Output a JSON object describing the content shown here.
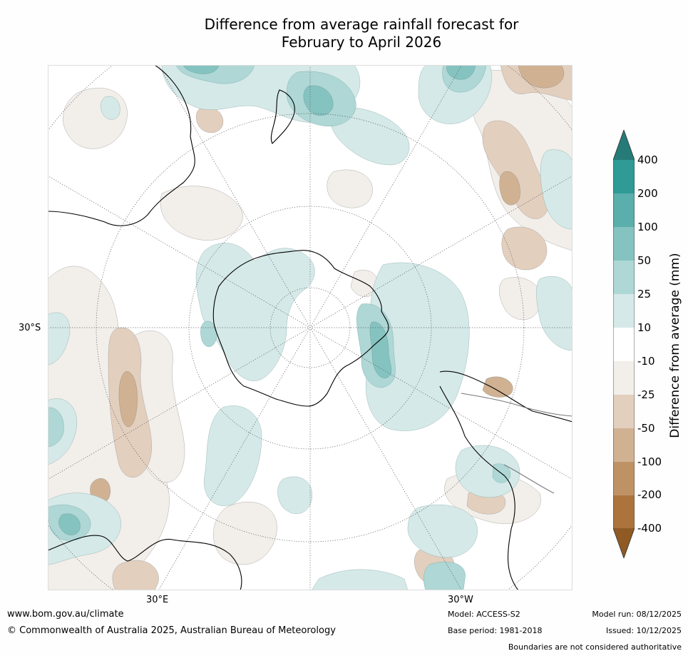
{
  "title_line1": "Difference from average rainfall forecast for",
  "title_line2": "February to April 2026",
  "map": {
    "projection": "south-polar-stereographic",
    "lat_label": "30°S",
    "lon_labels": {
      "east": "30°E",
      "west": "30°W"
    },
    "continents": [
      "Antarctica",
      "Australia",
      "New Zealand",
      "South America",
      "Southern Africa"
    ]
  },
  "colorbar": {
    "title": "Difference from average (mm)",
    "levels": [
      "400",
      "200",
      "100",
      "50",
      "25",
      "10",
      "-10",
      "-25",
      "-50",
      "-100",
      "-200",
      "-400"
    ],
    "colors": {
      "over": "#267b78",
      "b200_400": "#2f9a96",
      "b100_200": "#5aaeab",
      "b50_100": "#85c3c0",
      "b25_50": "#aed7d5",
      "b10_25": "#d5e9e8",
      "neutral": "#ffffff",
      "n10_25": "#f2eee9",
      "n25_50": "#e3cfbe",
      "n50_100": "#d0b293",
      "n100_200": "#bf9266",
      "n200_400": "#ac733d",
      "under": "#8f5a23"
    }
  },
  "footer": {
    "url": "www.bom.gov.au/climate",
    "copyright": "© Commonwealth of Australia 2025, Australian Bureau of Meteorology",
    "model": "Model: ACCESS-S2",
    "base_period": "Base period: 1981-2018",
    "model_run": "Model run: 08/12/2025",
    "issued": "Issued: 10/12/2025",
    "disclaimer": "Boundaries are not considered authoritative"
  }
}
